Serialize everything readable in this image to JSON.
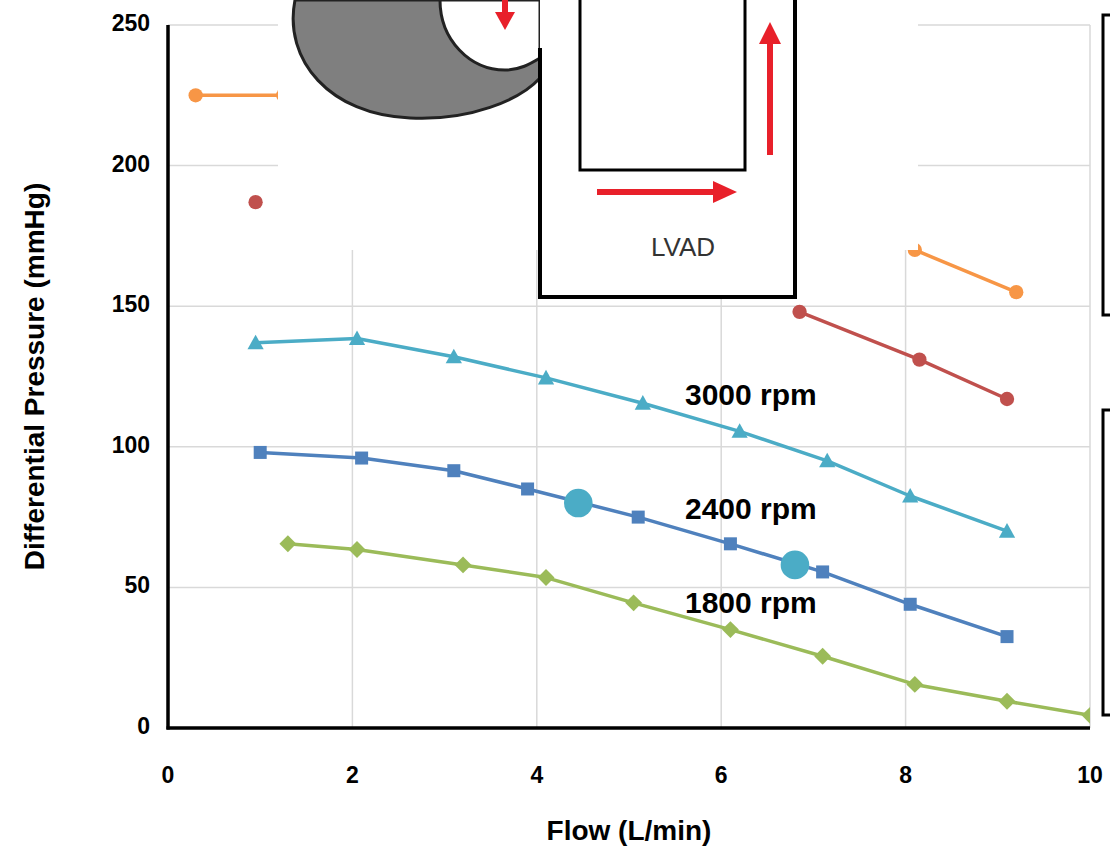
{
  "chart_data": {
    "type": "line",
    "x_label": "Flow (L/min)",
    "y_label": "Differential Pressure (mmHg)",
    "xlim": [
      0,
      10
    ],
    "ylim": [
      0,
      250
    ],
    "xticks": [
      0,
      2,
      4,
      6,
      8,
      10
    ],
    "yticks": [
      0,
      50,
      100,
      150,
      200,
      250
    ],
    "grid": true,
    "annotations": [
      "LVAD"
    ],
    "series": [
      {
        "color": "#f79646",
        "marker": "circle",
        "x": [
          0.3,
          1.25,
          5,
          8.1,
          9.2
        ],
        "values": [
          225,
          225,
          null,
          170,
          155
        ]
      },
      {
        "color": "#c0504d",
        "marker": "circle",
        "x": [
          0.95,
          4,
          6.85,
          8.15,
          9.1
        ],
        "values": [
          187,
          null,
          148,
          131,
          117
        ]
      },
      {
        "name": "3000 rpm",
        "color": "#4bacc6",
        "marker": "triangle",
        "x": [
          0.95,
          2.05,
          3.1,
          4.1,
          5.15,
          6.2,
          7.15,
          8.05,
          9.1
        ],
        "values": [
          137,
          138.5,
          132,
          124.5,
          115.5,
          105.5,
          95,
          82.5,
          70
        ]
      },
      {
        "name": "2400 rpm",
        "color": "#4f81bd",
        "marker": "square",
        "x": [
          1.0,
          2.1,
          3.1,
          3.9,
          5.1,
          6.1,
          7.1,
          8.05,
          9.1
        ],
        "values": [
          98,
          96,
          91.5,
          85,
          75,
          65.5,
          55.5,
          44,
          32.5
        ]
      },
      {
        "name": "1800 rpm",
        "color": "#9bbb59",
        "marker": "diamond",
        "x": [
          1.3,
          2.05,
          3.2,
          4.1,
          5.05,
          6.1,
          7.1,
          8.1,
          9.1,
          10
        ],
        "values": [
          65.5,
          63.5,
          58,
          53.5,
          44.5,
          35,
          25.5,
          15.5,
          9.5,
          4.5
        ]
      },
      {
        "type": "scatter",
        "color": "#4bacc6",
        "marker": "circle",
        "x": [
          4.45,
          6.8
        ],
        "values": [
          80,
          58
        ]
      }
    ]
  }
}
